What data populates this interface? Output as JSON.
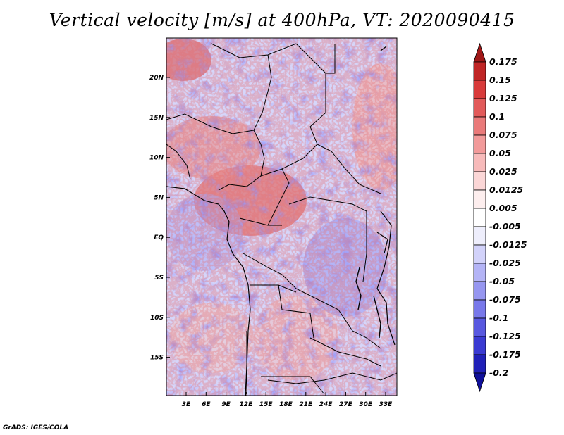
{
  "title": "Vertical velocity [m/s] at 400hPa, VT: 2020090415",
  "credit": "GrADS: IGES/COLA",
  "map": {
    "lon_ticks": [
      "3E",
      "6E",
      "9E",
      "12E",
      "15E",
      "18E",
      "21E",
      "24E",
      "27E",
      "30E",
      "33E"
    ],
    "lat_ticks": [
      "20N",
      "15N",
      "10N",
      "5N",
      "EQ",
      "5S",
      "10S",
      "15S"
    ],
    "field_colors": {
      "strong_up": "#c62a2a",
      "weak_up": "#f2b8b8",
      "neutral": "#ffffff",
      "weak_down": "#b8b8f5",
      "strong_down": "#3a3ad6"
    }
  },
  "colorbar": {
    "labels": [
      "0.175",
      "0.15",
      "0.125",
      "0.1",
      "0.075",
      "0.05",
      "0.025",
      "0.0125",
      "0.005",
      "-0.005",
      "-0.0125",
      "-0.025",
      "-0.05",
      "-0.075",
      "-0.1",
      "-0.125",
      "-0.175",
      "-0.2"
    ],
    "colors": [
      "#a01818",
      "#c02525",
      "#d83a3a",
      "#e25a5a",
      "#ea7a7a",
      "#f29a9a",
      "#f7baba",
      "#fbd6d6",
      "#fdeeee",
      "#ffffff",
      "#eeeefc",
      "#d2d2fa",
      "#b4b4f6",
      "#9696f0",
      "#7878ea",
      "#5858e0",
      "#3a3ad2",
      "#2020b8",
      "#10109a"
    ]
  }
}
